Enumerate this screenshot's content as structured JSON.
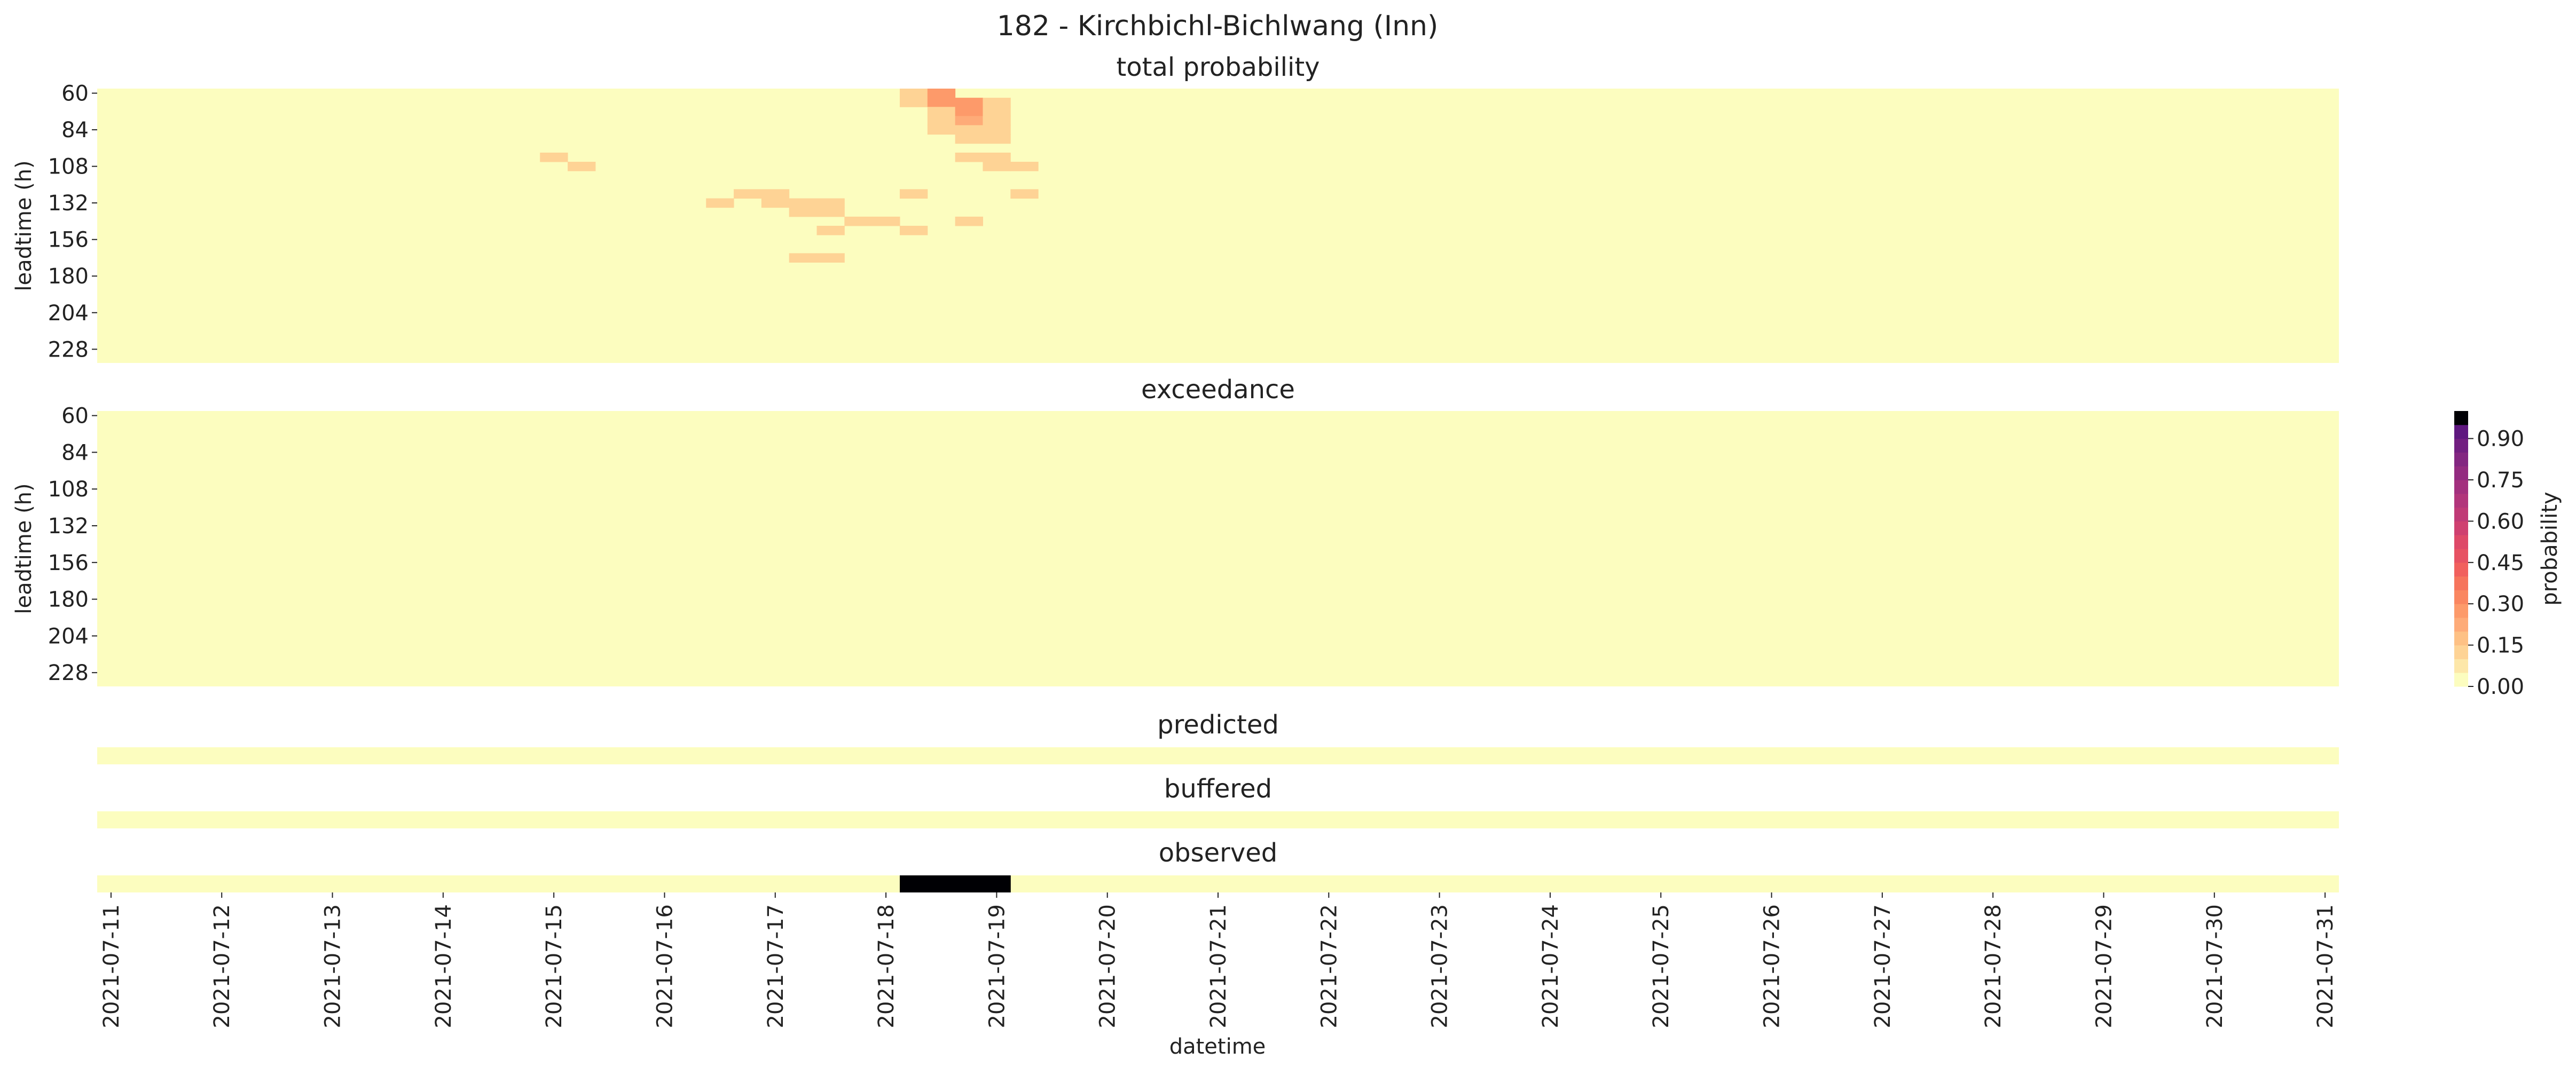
{
  "figure_title": "182 - Kirchbichl-Bichlwang (Inn)",
  "chart_data": {
    "type": "heatmap",
    "title": "182 - Kirchbichl-Bichlwang (Inn)",
    "xlabel": "datetime",
    "x_tick_labels": [
      "2021-07-11",
      "2021-07-12",
      "2021-07-13",
      "2021-07-14",
      "2021-07-15",
      "2021-07-16",
      "2021-07-17",
      "2021-07-18",
      "2021-07-19",
      "2021-07-20",
      "2021-07-21",
      "2021-07-22",
      "2021-07-23",
      "2021-07-24",
      "2021-07-25",
      "2021-07-26",
      "2021-07-27",
      "2021-07-28",
      "2021-07-29",
      "2021-07-30",
      "2021-07-31"
    ],
    "columns_per_day": 4,
    "column_count": 81,
    "leadtime_ylabel": "leadtime (h)",
    "leadtime_rows": [
      60,
      66,
      72,
      78,
      84,
      90,
      96,
      102,
      108,
      114,
      120,
      126,
      132,
      138,
      144,
      150,
      156,
      162,
      168,
      174,
      180,
      186,
      192,
      198,
      204,
      210,
      216,
      222,
      228,
      234
    ],
    "leadtime_tick_labels": [
      "60",
      "84",
      "108",
      "132",
      "156",
      "180",
      "204",
      "228"
    ],
    "colorbar": {
      "label": "probability",
      "ticks": [
        "0.00",
        "0.15",
        "0.30",
        "0.45",
        "0.60",
        "0.75",
        "0.90"
      ],
      "range": [
        0,
        1
      ],
      "levels": 20,
      "colors": [
        "#fcfdbf",
        "#fde7a9",
        "#fed395",
        "#fec185",
        "#feab78",
        "#fd9a6a",
        "#fa8660",
        "#f6745c",
        "#f1605d",
        "#e75263",
        "#de4968",
        "#cf4070",
        "#c03a76",
        "#b2357b",
        "#a3307e",
        "#932b80",
        "#832681",
        "#721f81",
        "#5f187f",
        "#000004"
      ]
    },
    "panels": [
      {
        "title": "total probability",
        "kind": "leadtime",
        "cells": [
          {
            "leadtime": 60,
            "col": 29,
            "value": 0.15
          },
          {
            "leadtime": 60,
            "col": 30,
            "value": 0.3
          },
          {
            "leadtime": 66,
            "col": 29,
            "value": 0.1
          },
          {
            "leadtime": 66,
            "col": 30,
            "value": 0.25
          },
          {
            "leadtime": 66,
            "col": 31,
            "value": 0.3
          },
          {
            "leadtime": 66,
            "col": 32,
            "value": 0.15
          },
          {
            "leadtime": 72,
            "col": 30,
            "value": 0.1
          },
          {
            "leadtime": 72,
            "col": 31,
            "value": 0.3
          },
          {
            "leadtime": 72,
            "col": 32,
            "value": 0.1
          },
          {
            "leadtime": 78,
            "col": 30,
            "value": 0.1
          },
          {
            "leadtime": 78,
            "col": 31,
            "value": 0.2
          },
          {
            "leadtime": 78,
            "col": 32,
            "value": 0.1
          },
          {
            "leadtime": 84,
            "col": 30,
            "value": 0.1
          },
          {
            "leadtime": 84,
            "col": 31,
            "value": 0.15
          },
          {
            "leadtime": 84,
            "col": 32,
            "value": 0.1
          },
          {
            "leadtime": 90,
            "col": 31,
            "value": 0.1
          },
          {
            "leadtime": 90,
            "col": 32,
            "value": 0.1
          },
          {
            "leadtime": 102,
            "col": 16,
            "value": 0.1
          },
          {
            "leadtime": 102,
            "col": 31,
            "value": 0.1
          },
          {
            "leadtime": 102,
            "col": 32,
            "value": 0.1
          },
          {
            "leadtime": 108,
            "col": 17,
            "value": 0.1
          },
          {
            "leadtime": 108,
            "col": 32,
            "value": 0.1
          },
          {
            "leadtime": 108,
            "col": 33,
            "value": 0.1
          },
          {
            "leadtime": 126,
            "col": 23,
            "value": 0.1
          },
          {
            "leadtime": 126,
            "col": 24,
            "value": 0.1
          },
          {
            "leadtime": 126,
            "col": 29,
            "value": 0.1
          },
          {
            "leadtime": 126,
            "col": 33,
            "value": 0.1
          },
          {
            "leadtime": 132,
            "col": 22,
            "value": 0.1
          },
          {
            "leadtime": 132,
            "col": 24,
            "value": 0.1
          },
          {
            "leadtime": 132,
            "col": 25,
            "value": 0.1
          },
          {
            "leadtime": 132,
            "col": 26,
            "value": 0.1
          },
          {
            "leadtime": 138,
            "col": 25,
            "value": 0.1
          },
          {
            "leadtime": 138,
            "col": 26,
            "value": 0.15
          },
          {
            "leadtime": 144,
            "col": 27,
            "value": 0.1
          },
          {
            "leadtime": 144,
            "col": 28,
            "value": 0.15
          },
          {
            "leadtime": 144,
            "col": 31,
            "value": 0.1
          },
          {
            "leadtime": 150,
            "col": 26,
            "value": 0.1
          },
          {
            "leadtime": 150,
            "col": 29,
            "value": 0.1
          },
          {
            "leadtime": 168,
            "col": 25,
            "value": 0.1
          },
          {
            "leadtime": 168,
            "col": 26,
            "value": 0.1
          }
        ]
      },
      {
        "title": "exceedance",
        "kind": "leadtime",
        "cells": []
      },
      {
        "title": "predicted",
        "kind": "single",
        "cells": []
      },
      {
        "title": "buffered",
        "kind": "single",
        "cells": []
      },
      {
        "title": "observed",
        "kind": "single",
        "cells": [
          {
            "col": 29,
            "value": 1
          },
          {
            "col": 30,
            "value": 1
          },
          {
            "col": 31,
            "value": 1
          },
          {
            "col": 32,
            "value": 1
          }
        ]
      }
    ]
  }
}
